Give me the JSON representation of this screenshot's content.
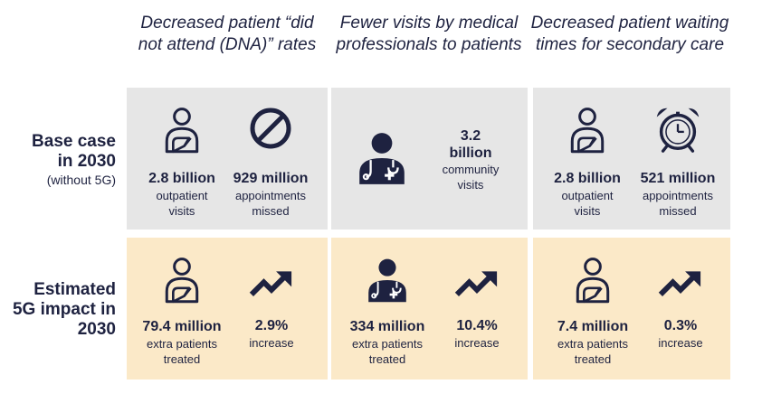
{
  "columns": [
    {
      "title": "Decreased patient “did not attend (DNA)” rates"
    },
    {
      "title": "Fewer visits by medical professionals to patients"
    },
    {
      "title": "Decreased patient waiting times for secondary care"
    }
  ],
  "rows": {
    "base": {
      "label": "Base case in 2030",
      "sub": "(without 5G)"
    },
    "impact": {
      "label": "Estimated 5G impact in 2030"
    }
  },
  "base": {
    "c1a": {
      "value": "2.8 billion",
      "desc": "outpatient visits",
      "icon": "patient-icon"
    },
    "c1b": {
      "value": "929 million",
      "desc": "appointments missed",
      "icon": "prohibited-icon"
    },
    "c2": {
      "value": "3.2 billion",
      "desc": "community visits",
      "icon": "doctor-icon"
    },
    "c3a": {
      "value": "2.8 billion",
      "desc": "outpatient visits",
      "icon": "patient-icon"
    },
    "c3b": {
      "value": "521 million",
      "desc": "appointments missed",
      "icon": "alarm-clock-icon"
    }
  },
  "impact": {
    "c1a": {
      "value": "79.4 million",
      "desc": "extra patients treated",
      "icon": "patient-icon"
    },
    "c1b": {
      "value": "2.9%",
      "desc": "increase",
      "icon": "trend-up-icon"
    },
    "c2a": {
      "value": "334 million",
      "desc": "extra patients treated",
      "icon": "doctor-icon"
    },
    "c2b": {
      "value": "10.4%",
      "desc": "increase",
      "icon": "trend-up-icon"
    },
    "c3a": {
      "value": "7.4 million",
      "desc": "extra patients treated",
      "icon": "patient-icon"
    },
    "c3b": {
      "value": "0.3%",
      "desc": "increase",
      "icon": "trend-up-icon"
    }
  },
  "colors": {
    "navy": "#1e2240",
    "gray_panel": "#e6e6e6",
    "tan_panel": "#fbe9c8"
  }
}
